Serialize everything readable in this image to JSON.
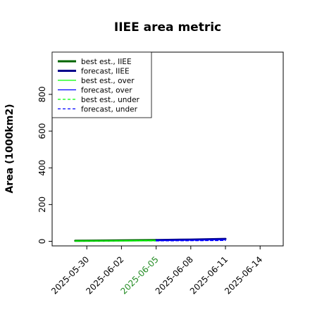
{
  "chart_data": {
    "type": "line",
    "title": "IIEE area metric",
    "ylabel": "Area (1000km2)",
    "xlabel": "",
    "ylim": [
      -25,
      1030
    ],
    "yticks": [
      0,
      200,
      400,
      600,
      800
    ],
    "xticks": [
      {
        "label": "2025-05-30",
        "date": "2025-05-30",
        "color": "#000000"
      },
      {
        "label": "2025-06-02",
        "date": "2025-06-02",
        "color": "#000000"
      },
      {
        "label": "2025-06-05",
        "date": "2025-06-05",
        "color": "#228b22"
      },
      {
        "label": "2025-06-08",
        "date": "2025-06-08",
        "color": "#000000"
      },
      {
        "label": "2025-06-11",
        "date": "2025-06-11",
        "color": "#000000"
      },
      {
        "label": "2025-06-14",
        "date": "2025-06-14",
        "color": "#000000"
      }
    ],
    "xlim": [
      "2025-05-27",
      "2025-06-16"
    ],
    "legend_position": "top-left",
    "grid": false,
    "series": [
      {
        "name": "best est., IIEE",
        "color": "#006400",
        "width": 3,
        "dash": "solid",
        "x": [
          "2025-05-29",
          "2025-06-01",
          "2025-06-05"
        ],
        "y": [
          3,
          4,
          7
        ]
      },
      {
        "name": "forecast, IIEE",
        "color": "#00008b",
        "width": 3,
        "dash": "solid",
        "x": [
          "2025-06-05",
          "2025-06-08",
          "2025-06-11"
        ],
        "y": [
          7,
          9,
          13
        ]
      },
      {
        "name": "best est., over",
        "color": "#00ff00",
        "width": 1.2,
        "dash": "solid",
        "x": [
          "2025-05-29",
          "2025-06-01",
          "2025-06-05"
        ],
        "y": [
          2,
          3,
          5
        ]
      },
      {
        "name": "forecast, over",
        "color": "#0000ff",
        "width": 1.2,
        "dash": "solid",
        "x": [
          "2025-06-05",
          "2025-06-08",
          "2025-06-11"
        ],
        "y": [
          5,
          6,
          9
        ]
      },
      {
        "name": "best est., under",
        "color": "#00ff00",
        "width": 1.2,
        "dash": "dashed",
        "x": [
          "2025-05-29",
          "2025-06-01",
          "2025-06-05"
        ],
        "y": [
          1,
          1,
          2
        ]
      },
      {
        "name": "forecast, under",
        "color": "#0000ff",
        "width": 1.2,
        "dash": "dashed",
        "x": [
          "2025-06-05",
          "2025-06-08",
          "2025-06-11"
        ],
        "y": [
          2,
          3,
          4
        ]
      }
    ]
  }
}
